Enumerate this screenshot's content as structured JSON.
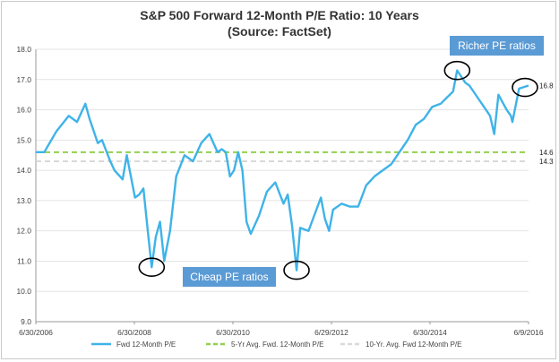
{
  "chart_data": {
    "type": "line",
    "title": "S&P 500 Forward 12-Month P/E Ratio: 10 Years",
    "subtitle": "(Source: FactSet)",
    "x_tick_labels": [
      "6/30/2006",
      "6/30/2008",
      "6/30/2010",
      "6/29/2012",
      "6/30/2014",
      "6/9/2016"
    ],
    "x_range": [
      "2006-06-30",
      "2016-06-09"
    ],
    "ylim": [
      9.0,
      18.0
    ],
    "y_ticks": [
      9.0,
      10.0,
      11.0,
      12.0,
      13.0,
      14.0,
      15.0,
      16.0,
      17.0,
      18.0
    ],
    "grid": true,
    "legend_position": "bottom",
    "series": [
      {
        "name": "Fwd 12-Month P/E",
        "color": "#3fb3e8",
        "style": "solid",
        "x": [
          "2006-06-30",
          "2006-08-31",
          "2006-11-30",
          "2007-02-28",
          "2007-04-30",
          "2007-06-30",
          "2007-07-31",
          "2007-09-30",
          "2007-10-31",
          "2007-12-31",
          "2008-01-31",
          "2008-03-31",
          "2008-04-30",
          "2008-06-30",
          "2008-07-31",
          "2008-08-31",
          "2008-09-30",
          "2008-10-31",
          "2008-11-30",
          "2008-12-31",
          "2009-01-31",
          "2009-03-15",
          "2009-04-30",
          "2009-06-30",
          "2009-08-31",
          "2009-10-31",
          "2009-12-31",
          "2010-02-28",
          "2010-03-31",
          "2010-04-30",
          "2010-05-31",
          "2010-06-30",
          "2010-07-31",
          "2010-08-31",
          "2010-09-30",
          "2010-10-31",
          "2010-12-31",
          "2011-02-28",
          "2011-04-30",
          "2011-06-30",
          "2011-07-31",
          "2011-08-31",
          "2011-10-04",
          "2011-10-31",
          "2011-12-31",
          "2012-03-31",
          "2012-04-30",
          "2012-05-31",
          "2012-06-29",
          "2012-08-31",
          "2012-10-31",
          "2012-12-31",
          "2013-02-28",
          "2013-04-30",
          "2013-06-30",
          "2013-08-31",
          "2013-10-31",
          "2013-12-31",
          "2014-02-28",
          "2014-04-30",
          "2014-06-30",
          "2014-08-31",
          "2014-10-15",
          "2014-11-30",
          "2014-12-31",
          "2015-02-28",
          "2015-03-31",
          "2015-05-31",
          "2015-07-31",
          "2015-08-31",
          "2015-09-30",
          "2015-10-31",
          "2015-12-31",
          "2016-01-31",
          "2016-02-11",
          "2016-03-31",
          "2016-06-09"
        ],
        "values": [
          14.6,
          14.6,
          15.3,
          15.8,
          15.6,
          16.2,
          15.7,
          14.9,
          15.0,
          14.3,
          14.0,
          13.7,
          14.5,
          13.1,
          13.2,
          13.4,
          12.1,
          10.8,
          11.8,
          12.3,
          11.0,
          12.0,
          13.8,
          14.5,
          14.3,
          14.9,
          15.2,
          14.6,
          14.7,
          14.6,
          13.8,
          14.0,
          14.6,
          14.0,
          12.3,
          11.9,
          12.5,
          13.3,
          13.6,
          12.9,
          13.2,
          12.2,
          10.7,
          12.1,
          12.0,
          13.1,
          12.4,
          12.0,
          12.7,
          12.9,
          12.8,
          12.8,
          13.5,
          13.8,
          14.0,
          14.2,
          14.6,
          15.0,
          15.5,
          15.7,
          16.1,
          16.2,
          16.4,
          16.6,
          17.3,
          16.9,
          16.8,
          16.4,
          16.0,
          15.8,
          15.2,
          16.5,
          16.0,
          15.8,
          15.6,
          16.7,
          16.8
        ]
      },
      {
        "name": "5-Yr Avg. Fwd. 12-Month P/E",
        "color": "#92d050",
        "style": "dashed",
        "constant": 14.6,
        "end_label": "14.6"
      },
      {
        "name": "10-Yr. Avg. Fwd 12-Month P/E",
        "color": "#d9d9d9",
        "style": "dashed",
        "constant": 14.3,
        "end_label": "14.3"
      }
    ],
    "annotations": [
      {
        "text": "Richer PE ratios",
        "color": "#5b9bd5"
      },
      {
        "text": "Cheap PE ratios",
        "color": "#5b9bd5"
      }
    ],
    "end_value_label": "16.8"
  }
}
